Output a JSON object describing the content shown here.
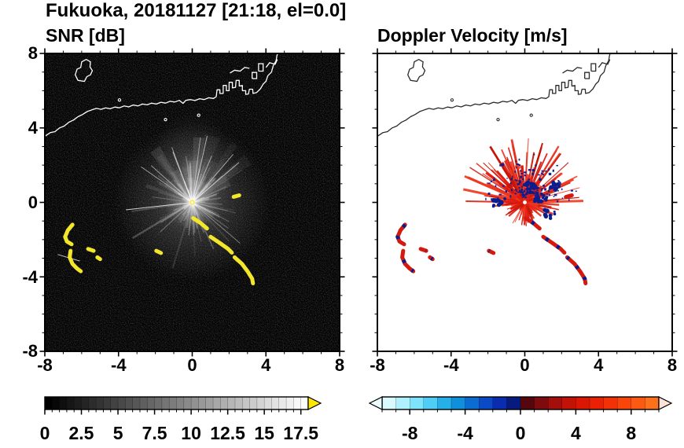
{
  "title": "Fukuoka, 20181127 [21:18, el=0.0]",
  "panels": {
    "left": {
      "title": "SNR [dB]"
    },
    "right": {
      "title": "Doppler Velocity [m/s]"
    }
  },
  "axes": {
    "x_range": [
      -8,
      8
    ],
    "y_range": [
      -8,
      8
    ],
    "x_tick_labels": [
      "-8",
      "-4",
      "0",
      "4",
      "8"
    ],
    "y_tick_labels": [
      "8",
      "4",
      "0",
      "-4",
      "-8"
    ],
    "major_tick_step": 4,
    "minor_tick_step": 1
  },
  "colorbars": {
    "snr": {
      "min": 0,
      "max": 18,
      "segment_step": 0.5,
      "tick_labels": [
        "0",
        "2.5",
        "5",
        "7.5",
        "10",
        "12.5",
        "15",
        "17.5"
      ],
      "label_values": [
        0,
        2.5,
        5,
        7.5,
        10,
        12.5,
        15,
        17.5
      ],
      "start_color": "#000000",
      "end_color": "#ffffff",
      "overflow_arrow_color": "#ffe800"
    },
    "velocity": {
      "min": -10,
      "max": 10,
      "tick_labels": [
        "-8",
        "-4",
        "0",
        "4",
        "8"
      ],
      "label_values": [
        -8,
        -4,
        0,
        4,
        8
      ],
      "segments": [
        "#d9fbff",
        "#b0f1ff",
        "#7fe3fb",
        "#4fcdf4",
        "#27b0e8",
        "#1090dc",
        "#0d6cd0",
        "#0c49c4",
        "#0a2cae",
        "#071a7e",
        "#56070e",
        "#7e0b0d",
        "#a30f0b",
        "#c31307",
        "#d91704",
        "#ea2104",
        "#f33108",
        "#f7450c",
        "#fa5a12",
        "#fc711c"
      ],
      "under_arrow_color": "#eafcff",
      "over_arrow_color": "#ffe3d6"
    }
  },
  "chart_data": {
    "type": "heatmap",
    "title": "Fukuoka, 20181127 [21:18, el=0.0]",
    "subplots": [
      {
        "title": "SNR [dB]",
        "xlim": [
          -8,
          8
        ],
        "ylim": [
          -8,
          8
        ],
        "background": "#000000",
        "colorbar": {
          "min": 0,
          "max": 18,
          "ticks": [
            0,
            2.5,
            5,
            7.5,
            10,
            12.5,
            15,
            17.5
          ],
          "units": "dB"
        }
      },
      {
        "title": "Doppler Velocity [m/s]",
        "xlim": [
          -8,
          8
        ],
        "ylim": [
          -8,
          8
        ],
        "background": "#ffffff",
        "colorbar": {
          "min": -10,
          "max": 10,
          "ticks": [
            -8,
            -4,
            0,
            4,
            8
          ],
          "units": "m/s"
        }
      }
    ],
    "radar_center": [
      0,
      0
    ],
    "features": [
      "ground-clutter starburst of rays centered at radar (0,0)",
      "precipitation/clutter arc echoes lower-left near (-6.5,-2.5) and sweeping from (0,-1) to (3.3,-4.3)",
      "coastline of Hakata Bay with island loop near (-5.8,7) and harbor piers near (2,6.3)"
    ],
    "echo_colors": {
      "snr": "#f2e72b",
      "vel_red": "#d41a0e",
      "vel_navy": "#0b1d8e"
    },
    "echo_arcs": [
      {
        "pts": [
          [
            -6.5,
            -1.2
          ],
          [
            -6.75,
            -1.5
          ],
          [
            -6.9,
            -1.85
          ],
          [
            -6.8,
            -2.1
          ],
          [
            -6.55,
            -2.25
          ]
        ]
      },
      {
        "pts": [
          [
            -6.6,
            -2.6
          ],
          [
            -6.65,
            -2.95
          ],
          [
            -6.5,
            -3.3
          ],
          [
            -6.25,
            -3.55
          ],
          [
            -6.05,
            -3.7
          ]
        ]
      },
      {
        "pts": [
          [
            -5.65,
            -2.5
          ],
          [
            -5.35,
            -2.6
          ]
        ]
      },
      {
        "pts": [
          [
            -5.15,
            -2.95
          ],
          [
            -5.0,
            -3.05
          ]
        ]
      },
      {
        "pts": [
          [
            -1.95,
            -2.6
          ],
          [
            -1.7,
            -2.72
          ]
        ]
      },
      {
        "pts": [
          [
            0.05,
            -0.85
          ],
          [
            0.45,
            -1.1
          ],
          [
            0.8,
            -1.4
          ]
        ]
      },
      {
        "pts": [
          [
            1.0,
            -1.85
          ],
          [
            1.45,
            -2.15
          ],
          [
            1.95,
            -2.5
          ],
          [
            2.15,
            -2.7
          ]
        ]
      },
      {
        "pts": [
          [
            2.3,
            -2.95
          ],
          [
            2.7,
            -3.3
          ],
          [
            3.0,
            -3.7
          ],
          [
            3.25,
            -4.1
          ],
          [
            3.3,
            -4.35
          ]
        ]
      },
      {
        "pts": [
          [
            2.25,
            0.3
          ],
          [
            2.55,
            0.38
          ]
        ]
      }
    ],
    "coastline": {
      "main": [
        [
          -8,
          3.55
        ],
        [
          -7.7,
          3.75
        ],
        [
          -7.45,
          3.8
        ],
        [
          -7.2,
          4.0
        ],
        [
          -6.95,
          4.1
        ],
        [
          -6.7,
          4.3
        ],
        [
          -6.45,
          4.42
        ],
        [
          -6.2,
          4.6
        ],
        [
          -5.95,
          4.72
        ],
        [
          -5.7,
          4.88
        ],
        [
          -5.45,
          4.97
        ],
        [
          -5.2,
          5.05
        ],
        [
          -4.95,
          5.0
        ],
        [
          -4.7,
          5.08
        ],
        [
          -4.45,
          5.03
        ],
        [
          -4.2,
          5.12
        ],
        [
          -3.95,
          5.08
        ],
        [
          -3.7,
          5.18
        ],
        [
          -3.45,
          5.13
        ],
        [
          -3.2,
          5.23
        ],
        [
          -2.95,
          5.18
        ],
        [
          -2.7,
          5.28
        ],
        [
          -2.45,
          5.24
        ],
        [
          -2.2,
          5.33
        ],
        [
          -1.95,
          5.28
        ],
        [
          -1.7,
          5.38
        ],
        [
          -1.45,
          5.33
        ],
        [
          -1.2,
          5.43
        ],
        [
          -0.95,
          5.39
        ],
        [
          -0.7,
          5.48
        ],
        [
          -0.5,
          5.32
        ],
        [
          -0.35,
          5.48
        ],
        [
          -0.1,
          5.52
        ],
        [
          0.15,
          5.47
        ],
        [
          0.4,
          5.57
        ],
        [
          0.65,
          5.52
        ],
        [
          0.9,
          5.62
        ],
        [
          1.15,
          5.58
        ],
        [
          1.3,
          5.68
        ],
        [
          1.35,
          6.05
        ],
        [
          1.5,
          6.05
        ],
        [
          1.5,
          5.85
        ],
        [
          1.68,
          5.85
        ],
        [
          1.68,
          6.28
        ],
        [
          1.85,
          6.28
        ],
        [
          1.85,
          6.0
        ],
        [
          2.0,
          6.0
        ],
        [
          2.0,
          6.45
        ],
        [
          2.18,
          6.45
        ],
        [
          2.18,
          6.15
        ],
        [
          2.35,
          6.18
        ],
        [
          2.38,
          6.55
        ],
        [
          2.55,
          6.55
        ],
        [
          2.55,
          6.25
        ],
        [
          2.72,
          6.28
        ],
        [
          2.72,
          6.0
        ],
        [
          2.9,
          6.0
        ],
        [
          2.9,
          5.8
        ],
        [
          3.05,
          5.82
        ],
        [
          3.1,
          6.08
        ],
        [
          3.28,
          6.08
        ],
        [
          3.3,
          5.85
        ],
        [
          3.5,
          5.9
        ],
        [
          3.7,
          6.1
        ],
        [
          3.85,
          6.35
        ],
        [
          4.0,
          6.5
        ],
        [
          4.1,
          6.8
        ],
        [
          4.3,
          7.0
        ],
        [
          4.4,
          7.35
        ],
        [
          4.55,
          7.6
        ],
        [
          4.6,
          7.9
        ],
        [
          4.72,
          8.2
        ]
      ],
      "island": [
        [
          -6.2,
          6.55
        ],
        [
          -6.35,
          6.85
        ],
        [
          -6.25,
          7.15
        ],
        [
          -6.05,
          7.25
        ],
        [
          -6.0,
          7.55
        ],
        [
          -5.75,
          7.68
        ],
        [
          -5.52,
          7.55
        ],
        [
          -5.55,
          7.28
        ],
        [
          -5.42,
          7.08
        ],
        [
          -5.52,
          6.85
        ],
        [
          -5.72,
          6.75
        ],
        [
          -5.85,
          6.5
        ],
        [
          -6.2,
          6.55
        ]
      ],
      "breakwaters": [
        [
          [
            2.05,
            6.95
          ],
          [
            2.3,
            7.1
          ],
          [
            2.6,
            7.05
          ],
          [
            2.85,
            7.25
          ],
          [
            3.1,
            7.2
          ]
        ],
        [
          [
            3.25,
            6.65
          ],
          [
            3.25,
            6.98
          ],
          [
            3.5,
            6.98
          ],
          [
            3.5,
            6.65
          ],
          [
            3.25,
            6.65
          ]
        ],
        [
          [
            3.6,
            7.05
          ],
          [
            3.6,
            7.45
          ],
          [
            3.85,
            7.45
          ],
          [
            3.85,
            7.05
          ],
          [
            3.6,
            7.05
          ]
        ],
        [
          [
            4.0,
            7.25
          ],
          [
            4.2,
            7.5
          ],
          [
            4.5,
            7.42
          ],
          [
            4.62,
            7.68
          ]
        ]
      ],
      "islets": [
        [
          -1.45,
          4.45
        ],
        [
          0.35,
          4.68
        ],
        [
          -3.95,
          5.5
        ]
      ]
    },
    "snr_burst": {
      "center": [
        0,
        0
      ],
      "wedge_count": 26,
      "ray_count": 130,
      "core_ray_count": 30,
      "bright_ray_count": 9,
      "fan_deg": [
        -75,
        60
      ],
      "max_radius": 4.0,
      "color": "#ffffff",
      "center_dot_color": "#ffe94a",
      "seed": 42
    },
    "vel_burst": {
      "center": [
        0,
        0
      ],
      "ray_count": 185,
      "lower_ray_count": 70,
      "fan_deg": [
        -115,
        115
      ],
      "max_radius": 3.6,
      "colors": [
        "#dd1b10",
        "#e8281a",
        "#c51508",
        "#f03a20"
      ],
      "navy": "#0b1d8e",
      "navy_count": 150,
      "navy_radius": 2.3,
      "clumps": [
        [
          0.85,
          0.2,
          14
        ],
        [
          1.3,
          -0.65,
          10
        ],
        [
          -1.38,
          -0.05,
          12
        ],
        [
          0.3,
          0.9,
          16
        ],
        [
          1.6,
          0.9,
          10
        ]
      ],
      "seed": 77
    }
  }
}
